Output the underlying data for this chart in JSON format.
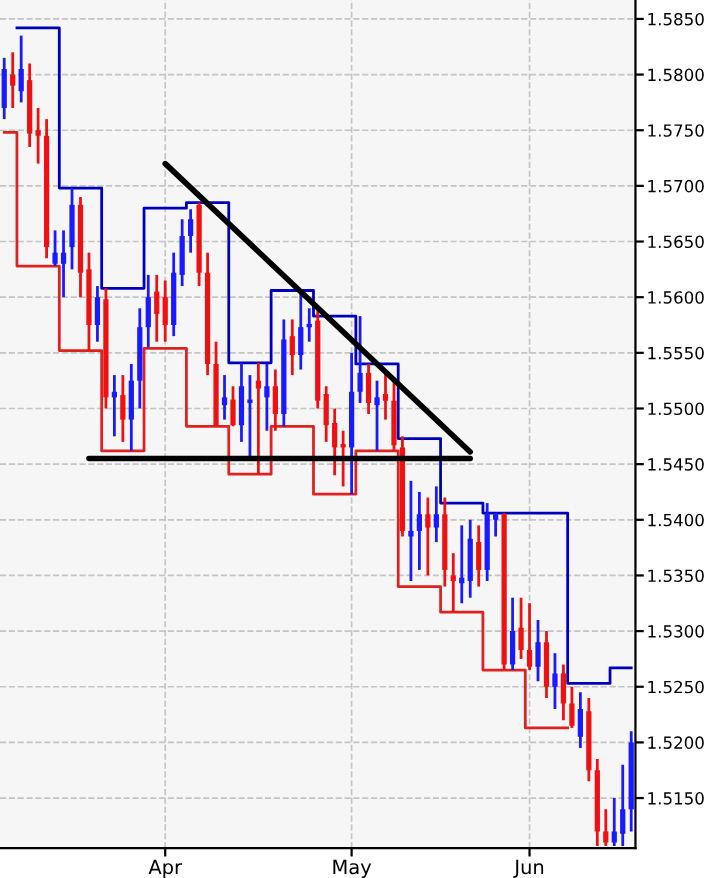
{
  "chart_data": {
    "type": "candlestick",
    "categories": [
      null,
      null,
      null,
      null,
      null,
      null,
      null,
      null,
      null,
      null,
      null,
      null,
      null,
      null,
      null,
      null,
      null,
      null,
      null,
      "Apr",
      null,
      null,
      null,
      null,
      null,
      null,
      null,
      null,
      null,
      null,
      null,
      null,
      null,
      null,
      null,
      null,
      null,
      null,
      null,
      null,
      null,
      "May",
      null,
      null,
      null,
      null,
      null,
      null,
      null,
      null,
      null,
      null,
      null,
      null,
      null,
      null,
      null,
      null,
      null,
      null,
      null,
      null,
      "Jun",
      null,
      null,
      null,
      null,
      null,
      null,
      null,
      null,
      null,
      null,
      null,
      null
    ],
    "ohlc": [
      [
        1.577,
        1.5815,
        1.576,
        1.5805
      ],
      [
        1.58,
        1.582,
        1.577,
        1.579
      ],
      [
        1.5785,
        1.5835,
        1.5775,
        1.5805
      ],
      [
        1.5795,
        1.581,
        1.5735,
        1.5747
      ],
      [
        1.575,
        1.577,
        1.572,
        1.5745
      ],
      [
        1.5745,
        1.576,
        1.5635,
        1.5645
      ],
      [
        1.563,
        1.566,
        1.5628,
        1.564
      ],
      [
        1.563,
        1.566,
        1.56,
        1.564
      ],
      [
        1.5645,
        1.5698,
        1.5625,
        1.5683
      ],
      [
        1.5683,
        1.569,
        1.56,
        1.5622
      ],
      [
        1.5625,
        1.564,
        1.5552,
        1.5575
      ],
      [
        1.5575,
        1.561,
        1.556,
        1.56
      ],
      [
        1.5598,
        1.5608,
        1.55,
        1.551
      ],
      [
        1.551,
        1.553,
        1.5475,
        1.5515
      ],
      [
        1.5512,
        1.553,
        1.547,
        1.549
      ],
      [
        1.549,
        1.554,
        1.5462,
        1.5525
      ],
      [
        1.5525,
        1.559,
        1.55,
        1.5573
      ],
      [
        1.5573,
        1.562,
        1.5555,
        1.56
      ],
      [
        1.5605,
        1.562,
        1.556,
        1.5585
      ],
      [
        1.56,
        1.5615,
        1.556,
        1.5575
      ],
      [
        1.5575,
        1.564,
        1.5565,
        1.5622
      ],
      [
        1.562,
        1.567,
        1.561,
        1.5655
      ],
      [
        1.5655,
        1.5679,
        1.564,
        1.567
      ],
      [
        1.5683,
        1.5685,
        1.561,
        1.5622
      ],
      [
        1.5622,
        1.564,
        1.553,
        1.554
      ],
      [
        1.554,
        1.556,
        1.5484,
        1.5485
      ],
      [
        1.5503,
        1.553,
        1.549,
        1.551
      ],
      [
        1.5508,
        1.552,
        1.5484,
        1.5485
      ],
      [
        1.5485,
        1.5541,
        1.547,
        1.552
      ],
      [
        1.5505,
        1.553,
        1.5455,
        1.5508
      ],
      [
        1.5525,
        1.5541,
        1.5441,
        1.5518
      ],
      [
        1.551,
        1.554,
        1.548,
        1.552
      ],
      [
        1.552,
        1.5535,
        1.548,
        1.5495
      ],
      [
        1.5495,
        1.558,
        1.5484,
        1.5562
      ],
      [
        1.5565,
        1.558,
        1.553,
        1.5548
      ],
      [
        1.5548,
        1.5606,
        1.5535,
        1.5573
      ],
      [
        1.5573,
        1.559,
        1.556,
        1.5576
      ],
      [
        1.5579,
        1.559,
        1.55,
        1.5507
      ],
      [
        1.5513,
        1.552,
        1.547,
        1.5485
      ],
      [
        1.5487,
        1.55,
        1.544,
        1.5465
      ],
      [
        1.5468,
        1.548,
        1.543,
        1.5465
      ],
      [
        1.5465,
        1.555,
        1.5423,
        1.5515
      ],
      [
        1.5515,
        1.5583,
        1.5505,
        1.5532
      ],
      [
        1.5532,
        1.554,
        1.5495,
        1.5505
      ],
      [
        1.5503,
        1.5525,
        1.5462,
        1.551
      ],
      [
        1.5513,
        1.5535,
        1.549,
        1.5507
      ],
      [
        1.5507,
        1.5525,
        1.5462,
        1.5467
      ],
      [
        1.5465,
        1.5475,
        1.5385,
        1.539
      ],
      [
        1.5385,
        1.5435,
        1.5345,
        1.539
      ],
      [
        1.539,
        1.5425,
        1.5355,
        1.5405
      ],
      [
        1.5405,
        1.542,
        1.535,
        1.5393
      ],
      [
        1.5393,
        1.543,
        1.538,
        1.5405
      ],
      [
        1.5405,
        1.542,
        1.534,
        1.5355
      ],
      [
        1.535,
        1.537,
        1.5317,
        1.5345
      ],
      [
        1.5343,
        1.5395,
        1.5325,
        1.5348
      ],
      [
        1.5345,
        1.54,
        1.533,
        1.5383
      ],
      [
        1.538,
        1.5395,
        1.534,
        1.5355
      ],
      [
        1.5355,
        1.5415,
        1.5345,
        1.5405
      ],
      [
        1.54,
        1.5406,
        1.5385,
        1.5405
      ],
      [
        1.5405,
        1.5406,
        1.5265,
        1.527
      ],
      [
        1.527,
        1.533,
        1.5265,
        1.53
      ],
      [
        1.5303,
        1.533,
        1.5275,
        1.5283
      ],
      [
        1.5283,
        1.5325,
        1.5265,
        1.5268
      ],
      [
        1.5268,
        1.531,
        1.5255,
        1.529
      ],
      [
        1.529,
        1.53,
        1.524,
        1.525
      ],
      [
        1.525,
        1.528,
        1.523,
        1.5262
      ],
      [
        1.5262,
        1.527,
        1.522,
        1.5235
      ],
      [
        1.5235,
        1.525,
        1.5213,
        1.5215
      ],
      [
        1.5205,
        1.5245,
        1.5195,
        1.523
      ],
      [
        1.5228,
        1.524,
        1.5165,
        1.5175
      ],
      [
        1.5175,
        1.5185,
        1.5107,
        1.512
      ],
      [
        1.512,
        1.514,
        1.5107,
        1.511
      ],
      [
        1.511,
        1.515,
        1.5107,
        1.512
      ],
      [
        1.5118,
        1.518,
        1.5107,
        1.514
      ],
      [
        1.514,
        1.521,
        1.512,
        1.52
      ]
    ],
    "colors": [
      "#1a1aff",
      "#ee1111",
      "#1a1aff",
      "#ee1111",
      "#ee1111",
      "#ee1111",
      "#1a1aff",
      "#1a1aff",
      "#1a1aff",
      "#ee1111",
      "#ee1111",
      "#1a1aff",
      "#ee1111",
      "#1a1aff",
      "#ee1111",
      "#1a1aff",
      "#1a1aff",
      "#1a1aff",
      "#ee1111",
      "#ee1111",
      "#1a1aff",
      "#1a1aff",
      "#1a1aff",
      "#ee1111",
      "#ee1111",
      "#ee1111",
      "#1a1aff",
      "#ee1111",
      "#1a1aff",
      "#1a1aff",
      "#ee1111",
      "#1a1aff",
      "#ee1111",
      "#1a1aff",
      "#ee1111",
      "#1a1aff",
      "#1a1aff",
      "#ee1111",
      "#ee1111",
      "#ee1111",
      "#ee1111",
      "#1a1aff",
      "#1a1aff",
      "#ee1111",
      "#1a1aff",
      "#ee1111",
      "#ee1111",
      "#ee1111",
      "#1a1aff",
      "#1a1aff",
      "#ee1111",
      "#1a1aff",
      "#ee1111",
      "#ee1111",
      "#1a1aff",
      "#1a1aff",
      "#ee1111",
      "#1a1aff",
      "#1a1aff",
      "#ee1111",
      "#1a1aff",
      "#ee1111",
      "#ee1111",
      "#1a1aff",
      "#ee1111",
      "#1a1aff",
      "#ee1111",
      "#ee1111",
      "#1a1aff",
      "#ee1111",
      "#ee1111",
      "#ee1111",
      "#1a1aff",
      "#1a1aff",
      "#1a1aff"
    ],
    "series": [
      {
        "type": "step",
        "color": "#0000bb",
        "values": [
          null,
          null,
          1.5842,
          1.5842,
          1.5842,
          1.5842,
          1.5842,
          1.5698,
          1.5698,
          1.5698,
          1.5698,
          1.5698,
          1.5608,
          1.5608,
          1.5608,
          1.5608,
          1.5608,
          1.568,
          1.568,
          1.568,
          1.568,
          1.568,
          1.5685,
          1.5685,
          1.5685,
          1.5685,
          1.5685,
          1.5541,
          1.5541,
          1.5541,
          1.5541,
          1.5541,
          1.5606,
          1.5606,
          1.5606,
          1.5606,
          1.5606,
          1.5583,
          1.5583,
          1.5583,
          1.5583,
          1.5583,
          1.554,
          1.554,
          1.554,
          1.554,
          1.554,
          1.5473,
          1.5473,
          1.5473,
          1.5473,
          1.5473,
          1.5415,
          1.5415,
          1.5415,
          1.5415,
          1.5415,
          1.5406,
          1.5406,
          1.5406,
          1.5406,
          1.5406,
          1.5406,
          1.5406,
          1.5406,
          1.5406,
          1.5406,
          1.5253,
          1.5253,
          1.5253,
          1.5253,
          1.5253,
          1.5267,
          1.5267,
          1.5267
        ]
      },
      {
        "type": "step",
        "color": "#dd2222",
        "values": [
          1.5748,
          1.5748,
          1.5628,
          1.5628,
          1.5628,
          1.5628,
          1.5628,
          1.5552,
          1.5552,
          1.5552,
          1.5552,
          1.5552,
          1.5462,
          1.5462,
          1.5462,
          1.5462,
          1.5462,
          1.5554,
          1.5554,
          1.5554,
          1.5554,
          1.5554,
          1.5484,
          1.5484,
          1.5484,
          1.5484,
          1.5484,
          1.5441,
          1.5441,
          1.5441,
          1.5441,
          1.5441,
          1.5484,
          1.5484,
          1.5484,
          1.5484,
          1.5484,
          1.5423,
          1.5423,
          1.5423,
          1.5423,
          1.5423,
          1.5462,
          1.5462,
          1.5462,
          1.5462,
          1.5462,
          1.534,
          1.534,
          1.534,
          1.534,
          1.534,
          1.5317,
          1.5317,
          1.5317,
          1.5317,
          1.5317,
          1.5265,
          1.5265,
          1.5265,
          1.5265,
          1.5265,
          1.5213,
          1.5213,
          1.5213,
          1.5213,
          1.5213,
          null,
          null,
          null,
          null,
          null,
          null,
          null,
          null
        ]
      },
      {
        "type": "line",
        "color": "#000000",
        "values": [
          null,
          null,
          null,
          null,
          null,
          null,
          null,
          null,
          null,
          null,
          null,
          null,
          null,
          null,
          null,
          null,
          null,
          null,
          null,
          1.572,
          null,
          null,
          null,
          null,
          null,
          null,
          null,
          null,
          null,
          null,
          null,
          null,
          null,
          null,
          null,
          null,
          null,
          null,
          null,
          null,
          null,
          null,
          null,
          null,
          null,
          null,
          null,
          null,
          null,
          null,
          null,
          null,
          null,
          null,
          null,
          1.5461,
          null,
          null,
          null,
          null,
          null,
          null,
          null,
          null,
          null,
          null,
          null,
          null,
          null,
          null,
          null,
          null,
          null,
          null,
          null
        ]
      },
      {
        "type": "line",
        "color": "#000000",
        "values": [
          null,
          null,
          null,
          null,
          null,
          null,
          null,
          null,
          null,
          null,
          1.5455,
          null,
          null,
          null,
          null,
          null,
          null,
          null,
          null,
          null,
          null,
          null,
          null,
          null,
          null,
          null,
          null,
          null,
          null,
          null,
          null,
          null,
          null,
          null,
          null,
          null,
          null,
          null,
          null,
          null,
          null,
          null,
          null,
          null,
          null,
          null,
          null,
          null,
          null,
          null,
          null,
          null,
          null,
          null,
          null,
          1.5455,
          null,
          null,
          null,
          null,
          null,
          null,
          null,
          null,
          null,
          null,
          null,
          null,
          null,
          null,
          null,
          null,
          null,
          null,
          null
        ]
      }
    ],
    "ylim": [
      1.5105,
      1.5867
    ],
    "yticks": [
      {
        "value": 1.515,
        "label": "1.5150"
      },
      {
        "value": 1.52,
        "label": "1.5200"
      },
      {
        "value": 1.525,
        "label": "1.5250"
      },
      {
        "value": 1.53,
        "label": "1.5300"
      },
      {
        "value": 1.535,
        "label": "1.5350"
      },
      {
        "value": 1.54,
        "label": "1.5400"
      },
      {
        "value": 1.545,
        "label": "1.5450"
      },
      {
        "value": 1.55,
        "label": "1.5500"
      },
      {
        "value": 1.555,
        "label": "1.5550"
      },
      {
        "value": 1.56,
        "label": "1.5600"
      },
      {
        "value": 1.565,
        "label": "1.5650"
      },
      {
        "value": 1.57,
        "label": "1.5700"
      },
      {
        "value": 1.575,
        "label": "1.5750"
      },
      {
        "value": 1.58,
        "label": "1.5800"
      },
      {
        "value": 1.585,
        "label": "1.5850"
      }
    ],
    "grid": true
  }
}
